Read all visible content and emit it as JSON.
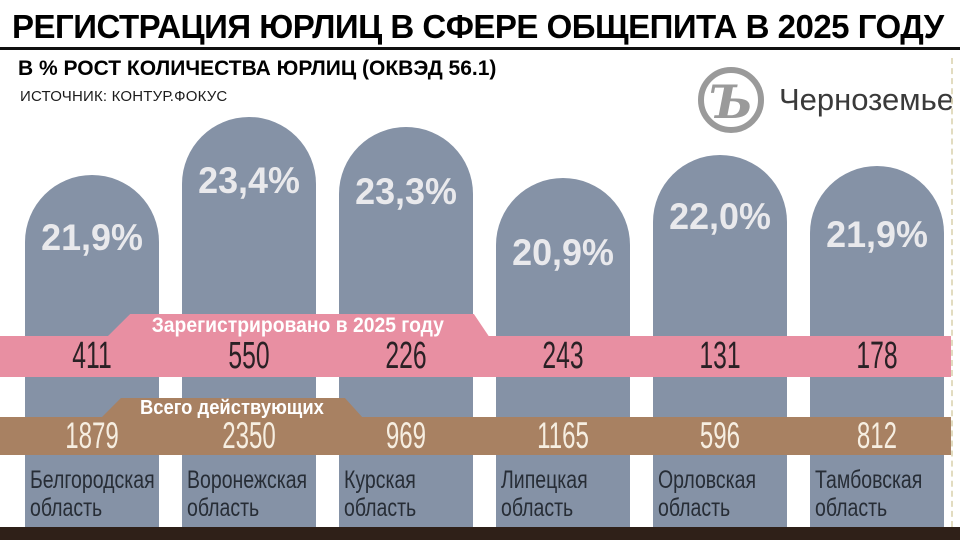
{
  "header": {
    "title": "РЕГИСТРАЦИЯ ЮРЛИЦ В СФЕРЕ ОБЩЕПИТА В 2025 ГОДУ",
    "subtitle": "В % РОСТ КОЛИЧЕСТВА ЮРЛИЦ (ОКВЭД 56.1)",
    "source": "ИСТОЧНИК: КОНТУР.ФОКУС"
  },
  "brand": {
    "logo_glyph": "Ъ",
    "name": "Черноземье"
  },
  "chart_data": {
    "type": "bar",
    "title": "РЕГИСТРАЦИЯ ЮРЛИЦ В СФЕРЕ ОБЩЕПИТА В 2025 ГОДУ",
    "subtitle": "В % РОСТ КОЛИЧЕСТВА ЮРЛИЦ (ОКВЭД 56.1)",
    "source": "ИСТОЧНИК: КОНТУР.ФОКУС",
    "categories": [
      "Белгородская область",
      "Воронежская область",
      "Курская область",
      "Липецкая область",
      "Орловская область",
      "Тамбовская область"
    ],
    "series": [
      {
        "name": "Рост количества юрлиц, %",
        "unit": "%",
        "values": [
          21.9,
          23.4,
          23.3,
          20.9,
          22.0,
          21.9
        ],
        "labels": [
          "21,9%",
          "23,4%",
          "23,3%",
          "20,9%",
          "22,0%",
          "21,9%"
        ]
      },
      {
        "name": "Зарегистрировано в 2025 году",
        "values": [
          411,
          550,
          226,
          243,
          131,
          178
        ]
      },
      {
        "name": "Всего действующих",
        "values": [
          1879,
          2350,
          969,
          1165,
          596,
          812
        ]
      }
    ],
    "legend_position": "inline-band-tabs",
    "grid": false
  },
  "colors": {
    "bar": "#8592a6",
    "registered_band": "#e88fa2",
    "registered_text": "#2a2125",
    "total_band": "#a88162",
    "total_text": "#f6eee1",
    "footer_strip": "#2f2018",
    "percent_text": "#e9e9ec"
  }
}
